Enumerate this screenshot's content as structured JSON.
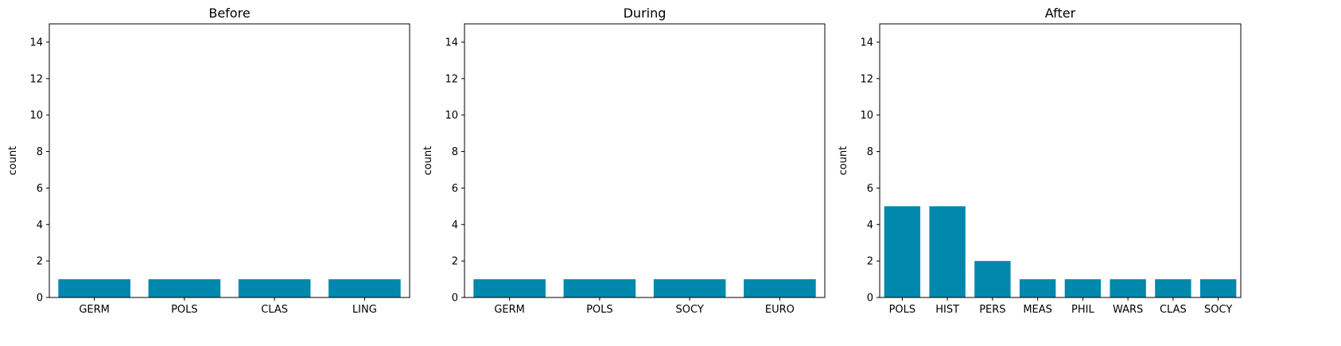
{
  "chart_data": [
    {
      "type": "bar",
      "title": "Before",
      "xlabel": "",
      "ylabel": "count",
      "ylim": [
        0,
        15
      ],
      "yticks": [
        0,
        2,
        4,
        6,
        8,
        10,
        12,
        14
      ],
      "categories": [
        "GERM",
        "POLS",
        "CLAS",
        "LING"
      ],
      "values": [
        1,
        1,
        1,
        1
      ],
      "bar_color": "#0088ad",
      "grid": false
    },
    {
      "type": "bar",
      "title": "During",
      "xlabel": "",
      "ylabel": "count",
      "ylim": [
        0,
        15
      ],
      "yticks": [
        0,
        2,
        4,
        6,
        8,
        10,
        12,
        14
      ],
      "categories": [
        "GERM",
        "POLS",
        "SOCY",
        "EURO"
      ],
      "values": [
        1,
        1,
        1,
        1
      ],
      "bar_color": "#0088ad",
      "grid": false
    },
    {
      "type": "bar",
      "title": "After",
      "xlabel": "",
      "ylabel": "count",
      "ylim": [
        0,
        15
      ],
      "yticks": [
        0,
        2,
        4,
        6,
        8,
        10,
        12,
        14
      ],
      "categories": [
        "POLS",
        "HIST",
        "PERS",
        "MEAS",
        "PHIL",
        "WARS",
        "CLAS",
        "SOCY"
      ],
      "values": [
        5,
        5,
        2,
        1,
        1,
        1,
        1,
        1
      ],
      "bar_color": "#0088ad",
      "grid": false
    }
  ]
}
